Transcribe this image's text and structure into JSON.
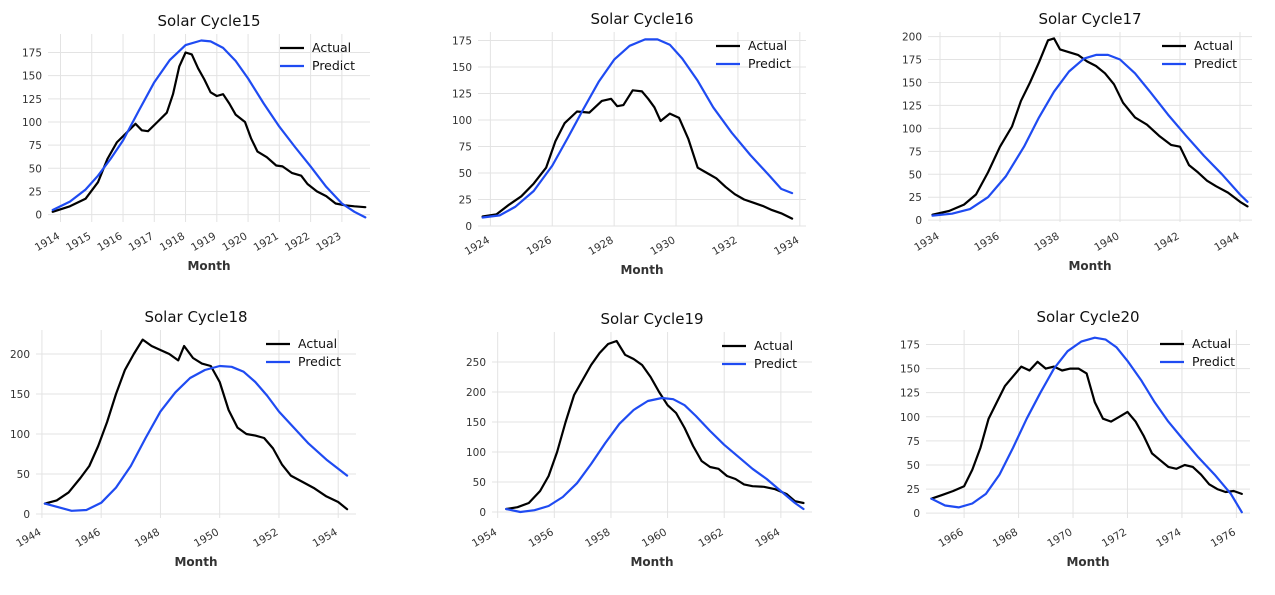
{
  "colors": {
    "actual": "#000000",
    "predict": "#1f4bf2",
    "grid": "#e3e3e3"
  },
  "legend": {
    "actual": "Actual",
    "predict": "Predict"
  },
  "chart_data": [
    {
      "type": "line",
      "title": "Solar Cycle15",
      "xlabel": "Month",
      "ylabel": "",
      "xlim": [
        1913.6,
        1923.9
      ],
      "ylim": [
        -8,
        195
      ],
      "xticks": [
        1914,
        1915,
        1916,
        1917,
        1918,
        1919,
        1920,
        1921,
        1922,
        1923
      ],
      "yticks": [
        0,
        25,
        50,
        75,
        100,
        125,
        150,
        175
      ],
      "series": [
        {
          "name": "Actual",
          "x": [
            1913.75,
            1914.3,
            1914.8,
            1915.2,
            1915.5,
            1915.8,
            1916.1,
            1916.4,
            1916.6,
            1916.8,
            1917.1,
            1917.4,
            1917.6,
            1917.8,
            1918.0,
            1918.2,
            1918.4,
            1918.6,
            1918.8,
            1919.0,
            1919.2,
            1919.4,
            1919.6,
            1919.9,
            1920.1,
            1920.3,
            1920.6,
            1920.9,
            1921.1,
            1921.4,
            1921.7,
            1921.9,
            1922.2,
            1922.5,
            1922.8,
            1923.1,
            1923.4,
            1923.75
          ],
          "y": [
            3,
            9,
            17,
            35,
            60,
            78,
            88,
            98,
            91,
            90,
            100,
            110,
            130,
            160,
            175,
            173,
            158,
            146,
            132,
            128,
            130,
            120,
            108,
            100,
            82,
            68,
            62,
            53,
            52,
            45,
            42,
            33,
            25,
            20,
            12,
            10,
            9,
            8
          ]
        },
        {
          "name": "Predict",
          "x": [
            1913.75,
            1914.3,
            1914.8,
            1915.2,
            1915.6,
            1916.0,
            1916.5,
            1917.0,
            1917.5,
            1918.0,
            1918.5,
            1918.8,
            1919.2,
            1919.6,
            1920.0,
            1920.5,
            1921.0,
            1921.5,
            1922.0,
            1922.5,
            1923.0,
            1923.4,
            1923.75
          ],
          "y": [
            5,
            14,
            27,
            42,
            60,
            80,
            112,
            143,
            167,
            183,
            188,
            187,
            180,
            166,
            147,
            120,
            95,
            73,
            52,
            30,
            12,
            3,
            -3
          ]
        }
      ]
    },
    {
      "type": "line",
      "title": "Solar Cycle16",
      "xlabel": "Month",
      "ylabel": "",
      "xlim": [
        1923.6,
        1934.2
      ],
      "ylim": [
        0,
        183
      ],
      "xticks": [
        1924,
        1926,
        1928,
        1930,
        1932,
        1934
      ],
      "yticks": [
        0,
        25,
        50,
        75,
        100,
        125,
        150,
        175
      ],
      "series": [
        {
          "name": "Actual",
          "x": [
            1923.75,
            1924.2,
            1924.6,
            1925.0,
            1925.4,
            1925.8,
            1926.1,
            1926.4,
            1926.8,
            1927.2,
            1927.6,
            1927.9,
            1928.1,
            1928.3,
            1928.6,
            1928.9,
            1929.1,
            1929.3,
            1929.5,
            1929.8,
            1930.1,
            1930.4,
            1930.7,
            1931.0,
            1931.3,
            1931.6,
            1931.9,
            1932.2,
            1932.5,
            1932.8,
            1933.1,
            1933.4,
            1933.75
          ],
          "y": [
            9,
            11,
            20,
            28,
            40,
            55,
            80,
            97,
            108,
            107,
            118,
            120,
            113,
            114,
            128,
            127,
            120,
            112,
            99,
            106,
            102,
            82,
            55,
            50,
            45,
            37,
            30,
            25,
            22,
            19,
            15,
            12,
            7
          ]
        },
        {
          "name": "Predict",
          "x": [
            1923.75,
            1924.3,
            1924.8,
            1925.4,
            1926.0,
            1926.5,
            1927.0,
            1927.5,
            1928.0,
            1928.5,
            1929.0,
            1929.4,
            1929.8,
            1930.2,
            1930.7,
            1931.2,
            1931.8,
            1932.4,
            1933.0,
            1933.4,
            1933.75
          ],
          "y": [
            8,
            10,
            18,
            33,
            57,
            83,
            110,
            136,
            157,
            170,
            176,
            176,
            171,
            158,
            137,
            112,
            88,
            67,
            48,
            35,
            31
          ]
        }
      ]
    },
    {
      "type": "line",
      "title": "Solar Cycle17",
      "xlabel": "Month",
      "ylabel": "",
      "xlim": [
        1933.6,
        1944.4
      ],
      "ylim": [
        -2,
        205
      ],
      "xticks": [
        1934,
        1936,
        1938,
        1940,
        1942,
        1944
      ],
      "yticks": [
        0,
        25,
        50,
        75,
        100,
        125,
        150,
        175,
        200
      ],
      "series": [
        {
          "name": "Actual",
          "x": [
            1933.75,
            1934.3,
            1934.8,
            1935.2,
            1935.6,
            1936.0,
            1936.4,
            1936.7,
            1937.0,
            1937.3,
            1937.6,
            1937.8,
            1938.0,
            1938.3,
            1938.6,
            1938.9,
            1939.2,
            1939.5,
            1939.8,
            1940.1,
            1940.5,
            1940.9,
            1941.3,
            1941.7,
            1942.0,
            1942.3,
            1942.6,
            1942.9,
            1943.2,
            1943.6,
            1944.0,
            1944.25
          ],
          "y": [
            6,
            10,
            17,
            28,
            52,
            80,
            102,
            130,
            150,
            172,
            196,
            198,
            186,
            183,
            180,
            173,
            168,
            160,
            148,
            128,
            112,
            104,
            92,
            82,
            80,
            60,
            52,
            43,
            37,
            30,
            20,
            15
          ]
        },
        {
          "name": "Predict",
          "x": [
            1933.75,
            1934.4,
            1935.0,
            1935.6,
            1936.2,
            1936.8,
            1937.3,
            1937.8,
            1938.3,
            1938.8,
            1939.2,
            1939.6,
            1940.0,
            1940.5,
            1941.0,
            1941.6,
            1942.2,
            1942.8,
            1943.4,
            1944.0,
            1944.25
          ],
          "y": [
            5,
            7,
            12,
            25,
            48,
            80,
            112,
            140,
            162,
            176,
            180,
            180,
            175,
            160,
            140,
            115,
            92,
            70,
            50,
            28,
            20
          ]
        }
      ]
    },
    {
      "type": "line",
      "title": "Solar Cycle18",
      "xlabel": "Month",
      "ylabel": "",
      "xlim": [
        1943.8,
        1954.6
      ],
      "ylim": [
        -5,
        230
      ],
      "xticks": [
        1944,
        1946,
        1948,
        1950,
        1952,
        1954
      ],
      "yticks": [
        0,
        50,
        100,
        150,
        200
      ],
      "series": [
        {
          "name": "Actual",
          "x": [
            1944.1,
            1944.5,
            1944.9,
            1945.3,
            1945.6,
            1945.9,
            1946.2,
            1946.5,
            1946.8,
            1947.1,
            1947.4,
            1947.7,
            1948.0,
            1948.3,
            1948.6,
            1948.8,
            1949.1,
            1949.4,
            1949.7,
            1950.0,
            1950.3,
            1950.6,
            1950.9,
            1951.2,
            1951.5,
            1951.8,
            1952.1,
            1952.4,
            1952.8,
            1953.2,
            1953.6,
            1954.0,
            1954.3
          ],
          "y": [
            13,
            17,
            27,
            45,
            60,
            85,
            115,
            150,
            180,
            200,
            218,
            210,
            205,
            200,
            192,
            210,
            195,
            188,
            185,
            165,
            130,
            108,
            100,
            98,
            95,
            82,
            62,
            48,
            40,
            32,
            22,
            15,
            6
          ]
        },
        {
          "name": "Predict",
          "x": [
            1944.1,
            1944.6,
            1945.0,
            1945.5,
            1946.0,
            1946.5,
            1947.0,
            1947.5,
            1948.0,
            1948.5,
            1949.0,
            1949.5,
            1950.0,
            1950.4,
            1950.8,
            1951.2,
            1951.6,
            1952.0,
            1952.5,
            1953.0,
            1953.6,
            1954.3
          ],
          "y": [
            13,
            8,
            4,
            5,
            14,
            33,
            60,
            95,
            128,
            152,
            170,
            180,
            185,
            184,
            178,
            165,
            148,
            128,
            108,
            88,
            68,
            48
          ]
        }
      ]
    },
    {
      "type": "line",
      "title": "Solar Cycle19",
      "xlabel": "Month",
      "ylabel": "",
      "xlim": [
        1953.8,
        1965.1
      ],
      "ylim": [
        -10,
        300
      ],
      "xticks": [
        1954,
        1956,
        1958,
        1960,
        1962,
        1964
      ],
      "yticks": [
        0,
        50,
        100,
        150,
        200,
        250
      ],
      "series": [
        {
          "name": "Actual",
          "x": [
            1954.3,
            1954.7,
            1955.1,
            1955.5,
            1955.8,
            1956.1,
            1956.4,
            1956.7,
            1957.0,
            1957.3,
            1957.6,
            1957.9,
            1958.2,
            1958.5,
            1958.8,
            1959.1,
            1959.4,
            1959.7,
            1960.0,
            1960.3,
            1960.6,
            1960.9,
            1961.2,
            1961.5,
            1961.8,
            1962.1,
            1962.4,
            1962.7,
            1963.0,
            1963.4,
            1963.8,
            1964.2,
            1964.5,
            1964.8
          ],
          "y": [
            5,
            8,
            15,
            35,
            60,
            100,
            150,
            195,
            220,
            245,
            265,
            280,
            285,
            262,
            255,
            245,
            225,
            200,
            178,
            165,
            140,
            110,
            85,
            75,
            72,
            60,
            55,
            46,
            43,
            42,
            38,
            30,
            18,
            15
          ]
        },
        {
          "name": "Predict",
          "x": [
            1954.3,
            1954.8,
            1955.3,
            1955.8,
            1956.3,
            1956.8,
            1957.3,
            1957.8,
            1958.3,
            1958.8,
            1959.3,
            1959.8,
            1960.2,
            1960.6,
            1961.0,
            1961.5,
            1962.0,
            1962.5,
            1963.0,
            1963.5,
            1964.0,
            1964.5,
            1964.8
          ],
          "y": [
            5,
            0,
            3,
            10,
            25,
            48,
            80,
            115,
            147,
            170,
            185,
            190,
            188,
            178,
            160,
            135,
            112,
            92,
            72,
            55,
            35,
            15,
            5
          ]
        }
      ]
    },
    {
      "type": "line",
      "title": "Solar Cycle20",
      "xlabel": "Month",
      "ylabel": "",
      "xlim": [
        1964.6,
        1976.5
      ],
      "ylim": [
        -5,
        190
      ],
      "xticks": [
        1966,
        1968,
        1970,
        1972,
        1974,
        1976
      ],
      "yticks": [
        0,
        25,
        50,
        75,
        100,
        125,
        150,
        175
      ],
      "series": [
        {
          "name": "Actual",
          "x": [
            1964.8,
            1965.2,
            1965.6,
            1966.0,
            1966.3,
            1966.6,
            1966.9,
            1967.2,
            1967.5,
            1967.8,
            1968.1,
            1968.4,
            1968.7,
            1969.0,
            1969.3,
            1969.6,
            1969.9,
            1970.2,
            1970.5,
            1970.8,
            1971.1,
            1971.4,
            1971.7,
            1972.0,
            1972.3,
            1972.6,
            1972.9,
            1973.2,
            1973.5,
            1973.8,
            1974.1,
            1974.4,
            1974.7,
            1975.0,
            1975.3,
            1975.6,
            1975.9,
            1976.2
          ],
          "y": [
            15,
            19,
            23,
            28,
            45,
            68,
            98,
            115,
            132,
            142,
            152,
            148,
            157,
            150,
            152,
            148,
            150,
            150,
            145,
            115,
            98,
            95,
            100,
            105,
            95,
            80,
            62,
            55,
            48,
            46,
            50,
            48,
            40,
            30,
            25,
            22,
            23,
            20
          ]
        },
        {
          "name": "Predict",
          "x": [
            1964.8,
            1965.3,
            1965.8,
            1966.3,
            1966.8,
            1967.3,
            1967.8,
            1968.3,
            1968.8,
            1969.3,
            1969.8,
            1970.3,
            1970.8,
            1971.2,
            1971.6,
            1972.0,
            1972.5,
            1973.0,
            1973.5,
            1974.0,
            1974.6,
            1975.2,
            1975.8,
            1976.2
          ],
          "y": [
            15,
            8,
            6,
            10,
            20,
            40,
            68,
            98,
            125,
            150,
            168,
            178,
            182,
            180,
            172,
            158,
            138,
            115,
            95,
            78,
            58,
            40,
            20,
            1
          ]
        }
      ]
    }
  ]
}
